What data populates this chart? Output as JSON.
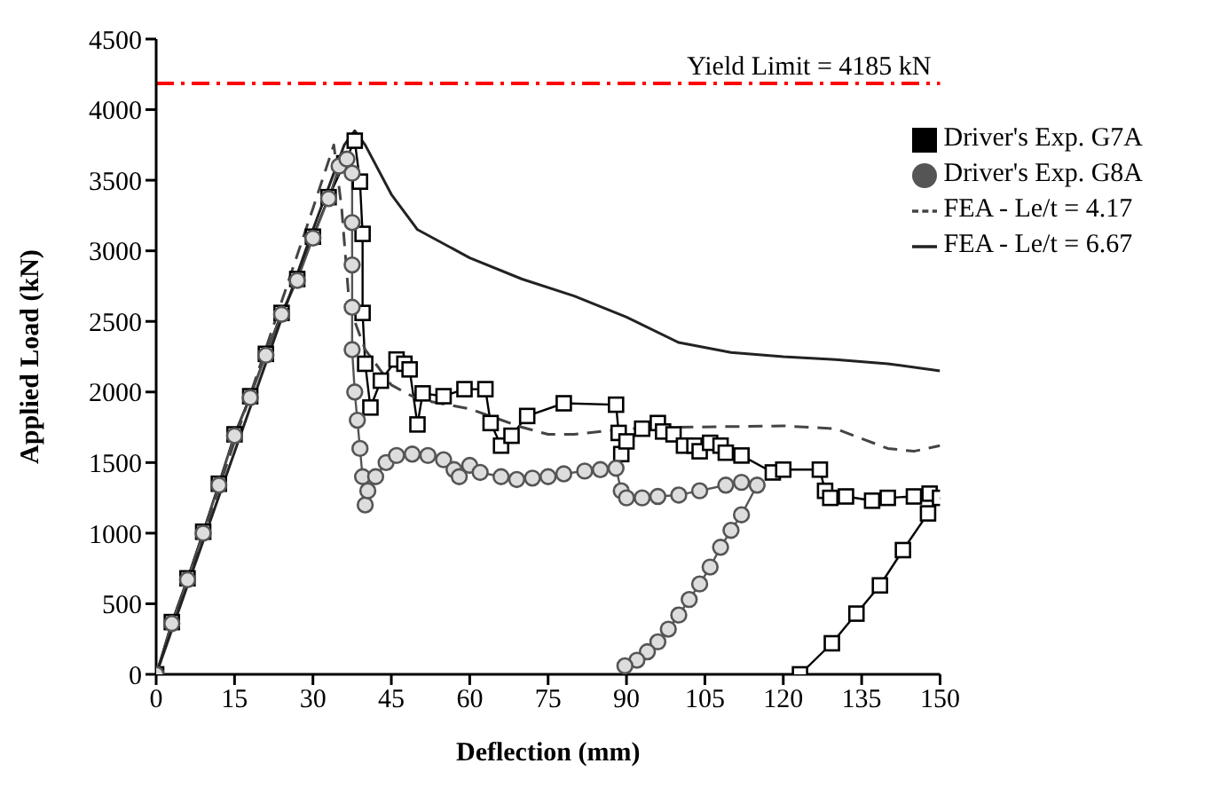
{
  "chart_data": {
    "type": "line",
    "xlabel": "Deflection (mm)",
    "ylabel": "Applied Load (kN)",
    "xlim": [
      0,
      150
    ],
    "xticks": [
      0,
      15,
      30,
      45,
      60,
      75,
      90,
      105,
      120,
      135,
      150
    ],
    "ylim": [
      0,
      4500
    ],
    "yticks": [
      0,
      500,
      1000,
      1500,
      2000,
      2500,
      3000,
      3500,
      4000,
      4500
    ],
    "grid": false,
    "legend": "top right",
    "ref_lines": [
      {
        "axis": "y",
        "value": 4185,
        "label": "Yield Limit = 4185 kN",
        "color": "#ff0000",
        "line_style": "dashdot"
      }
    ],
    "series": [
      {
        "name": "Driver's Exp. G7A",
        "color": "#000000",
        "marker": "square",
        "line_style": "solid",
        "x": [
          0,
          3,
          6,
          9,
          12,
          15,
          18,
          21,
          24,
          27,
          30,
          33,
          36,
          38,
          39,
          39.5,
          39.5,
          40,
          41,
          43,
          46,
          47.5,
          48.5,
          50,
          51,
          55,
          59,
          63,
          64,
          66,
          68,
          71,
          78,
          88,
          88.5,
          89,
          90,
          93,
          96,
          97,
          99,
          101,
          103,
          104,
          106,
          108,
          109,
          112,
          118,
          120,
          127,
          128,
          129,
          132,
          137,
          140,
          145,
          148,
          150,
          147.7,
          142.9,
          138.5,
          134,
          129.3,
          123.2
        ],
        "values": [
          0,
          370,
          680,
          1010,
          1350,
          1700,
          1970,
          2270,
          2560,
          2800,
          3100,
          3380,
          3620,
          3780,
          3490,
          3120,
          2560,
          2200,
          1890,
          2080,
          2230,
          2200,
          2160,
          1770,
          1990,
          1970,
          2020,
          2020,
          1780,
          1620,
          1690,
          1830,
          1920,
          1910,
          1710,
          1560,
          1650,
          1740,
          1780,
          1720,
          1700,
          1620,
          1620,
          1580,
          1640,
          1620,
          1570,
          1550,
          1430,
          1450,
          1450,
          1300,
          1250,
          1260,
          1230,
          1250,
          1260,
          1280,
          1250,
          1140,
          880,
          630,
          430,
          220,
          0
        ]
      },
      {
        "name": "Driver's Exp. G8A",
        "color": "#555555",
        "marker": "circle",
        "line_style": "solid",
        "x": [
          0,
          3,
          6,
          9,
          12,
          15,
          18,
          21,
          24,
          27,
          30,
          33,
          35,
          36.5,
          37.5,
          37.5,
          37.5,
          37.5,
          37.5,
          38,
          38.5,
          39,
          39.5,
          40,
          40.5,
          42,
          44,
          46,
          49,
          52,
          55,
          57,
          58,
          60,
          62,
          66,
          69,
          72,
          75,
          78,
          82,
          85,
          88,
          89,
          90,
          93,
          96,
          100,
          104,
          109,
          112,
          115,
          112,
          110,
          108,
          106,
          104,
          102,
          100,
          98,
          96,
          94,
          92,
          89.7
        ],
        "values": [
          0,
          360,
          670,
          1000,
          1340,
          1690,
          1960,
          2260,
          2550,
          2790,
          3090,
          3370,
          3600,
          3650,
          3550,
          3200,
          2900,
          2600,
          2300,
          2000,
          1800,
          1600,
          1400,
          1200,
          1300,
          1400,
          1500,
          1550,
          1560,
          1550,
          1520,
          1450,
          1400,
          1480,
          1430,
          1400,
          1380,
          1390,
          1400,
          1420,
          1440,
          1450,
          1460,
          1300,
          1250,
          1250,
          1260,
          1270,
          1300,
          1340,
          1360,
          1340,
          1130,
          1020,
          900,
          760,
          640,
          530,
          420,
          320,
          230,
          160,
          100,
          60
        ]
      },
      {
        "name": "FEA - Le/t = 4.17",
        "color": "#444444",
        "marker": "none",
        "line_style": "dashed",
        "x": [
          0,
          10,
          20,
          30,
          34,
          35.5,
          37,
          40,
          45,
          50,
          60,
          70,
          75,
          80,
          90,
          100,
          120,
          130,
          140,
          145,
          150
        ],
        "values": [
          0,
          1100,
          2200,
          3300,
          3750,
          3300,
          2600,
          2300,
          2050,
          1950,
          1880,
          1750,
          1700,
          1700,
          1740,
          1750,
          1760,
          1740,
          1600,
          1580,
          1620
        ]
      },
      {
        "name": "FEA - Le/t = 6.67",
        "color": "#222222",
        "marker": "none",
        "line_style": "solid",
        "x": [
          0,
          10,
          20,
          30,
          36,
          38,
          40,
          45,
          50,
          60,
          70,
          80,
          90,
          100,
          110,
          120,
          130,
          140,
          150
        ],
        "values": [
          0,
          1050,
          2100,
          3150,
          3750,
          3850,
          3750,
          3400,
          3150,
          2950,
          2800,
          2680,
          2530,
          2350,
          2280,
          2250,
          2230,
          2200,
          2150
        ]
      }
    ]
  }
}
